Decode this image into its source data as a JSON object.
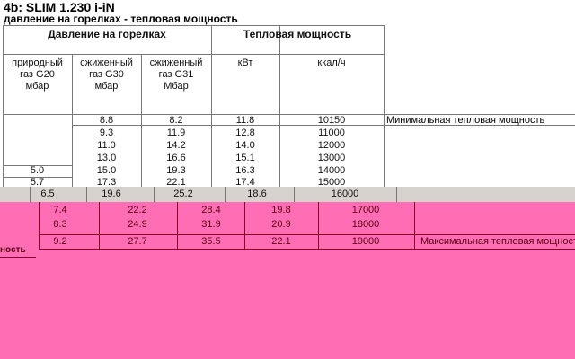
{
  "title": "4b: SLIM 1.230 i-iN",
  "subtitle": "давление на горелках - тепловая мощность",
  "header": {
    "group1": "Давление на горелках",
    "group2": "Тепловая мощность",
    "cols": [
      "природный газ G20 мбар",
      "сжиженный газ G30 мбар",
      "сжиженный газ G31 Мбар",
      "кВт",
      "ккал/ч"
    ]
  },
  "rows": [
    {
      "g20": "",
      "g30": "8.8",
      "g31": "8.2",
      "kw": "11.8",
      "kcal": "10150",
      "note": "Минимальная тепловая мощность"
    },
    {
      "g20": "",
      "g30": "9.3",
      "g31": "11.9",
      "kw": "12.8",
      "kcal": "11000",
      "note": ""
    },
    {
      "g20": "",
      "g30": "11.0",
      "g31": "14.2",
      "kw": "14.0",
      "kcal": "12000",
      "note": ""
    },
    {
      "g20": "",
      "g30": "13.0",
      "g31": "16.6",
      "kw": "15.1",
      "kcal": "13000",
      "note": ""
    },
    {
      "g20": "5.0",
      "g30": "15.0",
      "g31": "19.3",
      "kw": "16.3",
      "kcal": "14000",
      "note": ""
    },
    {
      "g20": "5.7",
      "g30": "17.3",
      "g31": "22.1",
      "kw": "17.4",
      "kcal": "15000",
      "note": ""
    },
    {
      "g20": "6.5",
      "g30": "19.6",
      "g31": "25.2",
      "kw": "18.6",
      "kcal": "16000",
      "note": ""
    },
    {
      "g20": "7.4",
      "g30": "22.2",
      "g31": "28.4",
      "kw": "19.8",
      "kcal": "17000",
      "note": ""
    },
    {
      "g20": "8.3",
      "g30": "24.9",
      "g31": "31.9",
      "kw": "20.9",
      "kcal": "18000",
      "note": ""
    },
    {
      "g20": "9.2",
      "g30": "27.7",
      "g31": "35.5",
      "kw": "22.1",
      "kcal": "19000",
      "note": "Максимальная тепловая мощность"
    }
  ],
  "fragment": "ность",
  "colors": {
    "glitch": "#ff6eb4",
    "band": "#d6d3ce"
  }
}
